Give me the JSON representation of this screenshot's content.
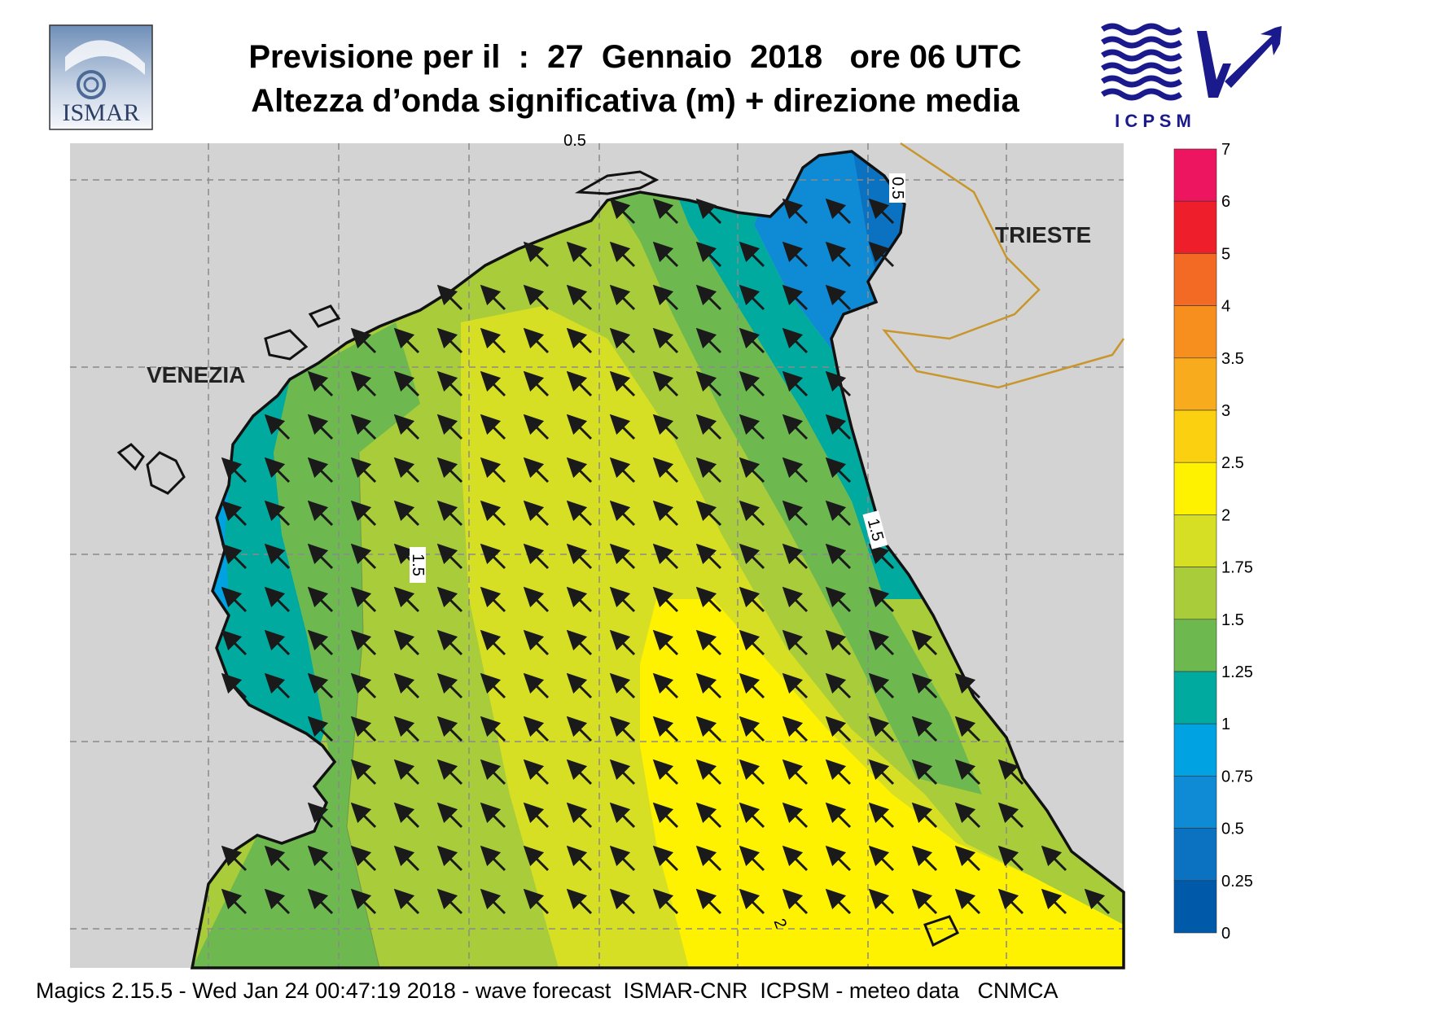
{
  "header": {
    "title_line1": "Previsione per il  :  27  Gennaio  2018   ore 06 UTC",
    "title_line2": "Altezza d’onda significativa (m) + direzione media"
  },
  "logos": {
    "left": {
      "name": "ISMAR",
      "text": "ISMAR"
    },
    "right": {
      "name": "ICPSM",
      "text": "I C P S M",
      "color": "#1a1a8c"
    }
  },
  "map": {
    "cities": [
      {
        "name": "VENEZIA"
      },
      {
        "name": "TRIESTE"
      }
    ],
    "contour_labels": [
      "0.5",
      "0.5",
      "1.5",
      "1.5",
      "2"
    ],
    "land_color": "#d3d3d3",
    "coast_color": "#111111",
    "border_color": "#c8962c",
    "arrow_color": "#1a1a1a",
    "mean_wave_direction": "north-west"
  },
  "legend": {
    "title": "",
    "ticks": [
      "7",
      "6",
      "5",
      "4",
      "3.5",
      "3",
      "2.5",
      "2",
      "1.75",
      "1.5",
      "1.25",
      "1",
      "0.75",
      "0.5",
      "0.25",
      "0"
    ],
    "colors": [
      "#ee1560",
      "#ee1e2a",
      "#f36a25",
      "#f78f1e",
      "#f7ab1d",
      "#fbd010",
      "#fff200",
      "#d6df24",
      "#a9cd3a",
      "#6db950",
      "#00aa9e",
      "#00a2e2",
      "#0f8bd6",
      "#0a72c1",
      "#0059a9"
    ]
  },
  "footer": {
    "text": "Magics 2.15.5 - Wed Jan 24 00:47:19 2018 - wave forecast  ISMAR-CNR  ICPSM - meteo data   CNMCA"
  }
}
